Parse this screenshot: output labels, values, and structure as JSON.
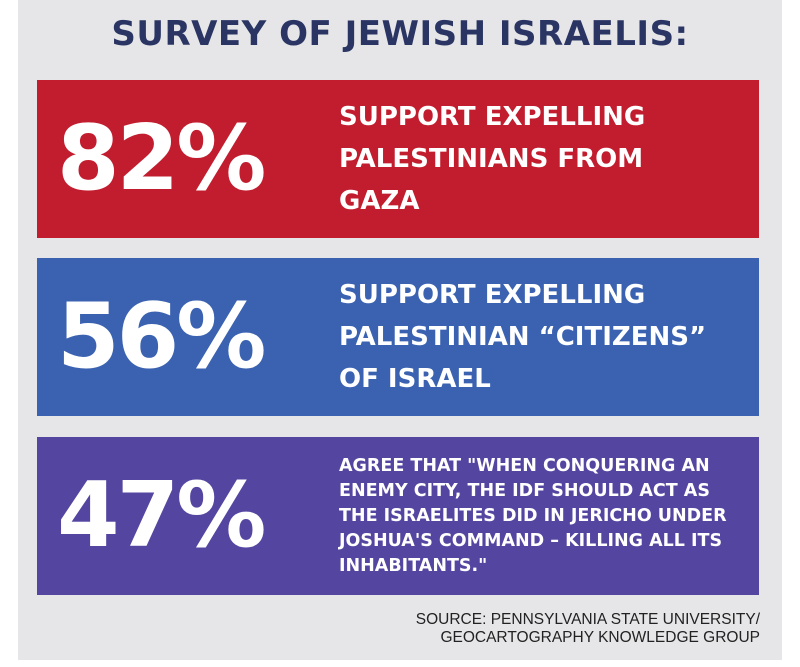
{
  "title": "SURVEY OF JEWISH ISRAELIS:",
  "stats": [
    {
      "percent": "82%",
      "description": "SUPPORT EXPELLING PALESTINIANS FROM GAZA",
      "color": "#c21d2e"
    },
    {
      "percent": "56%",
      "description": "SUPPORT EXPELLING PALESTINIAN “CITIZENS” OF ISRAEL",
      "color": "#3a62b1"
    },
    {
      "percent": "47%",
      "description": "AGREE THAT \"WHEN CONQUERING AN ENEMY CITY, THE IDF SHOULD ACT AS THE ISRAELITES DID IN JERICHO UNDER JOSHUA'S COMMAND – KILLING ALL ITS INHABITANTS.\"",
      "color": "#5445a0"
    }
  ],
  "source": {
    "line1": "SOURCE: PENNSYLVANIA STATE UNIVERSITY/",
    "line2": "GEOCARTOGRAPHY KNOWLEDGE GROUP"
  }
}
